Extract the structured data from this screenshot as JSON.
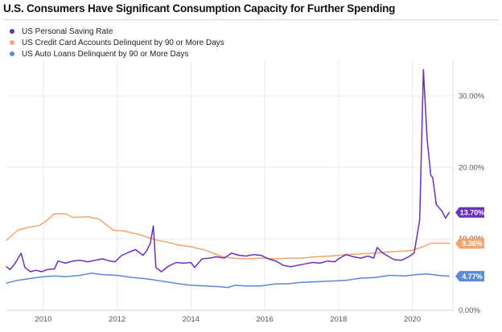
{
  "chart_data": {
    "type": "line",
    "title": "U.S. Consumers Have Significant Consumption Capacity for Further Spending",
    "xlabel": "",
    "ylabel": "",
    "xlim": [
      2009.0,
      2021.1
    ],
    "ylim": [
      0,
      35
    ],
    "x_ticks": [
      "2010",
      "2012",
      "2014",
      "2016",
      "2018",
      "2020"
    ],
    "y_ticks": [
      "0.00%",
      "10.00%",
      "20.00%",
      "30.00%"
    ],
    "grid": true,
    "legend": "top-left",
    "series": [
      {
        "name": "US Personal Saving Rate",
        "color": "#6a2fc0",
        "end_label": "13.70%",
        "points": [
          [
            2009.0,
            6.1
          ],
          [
            2009.1,
            5.7
          ],
          [
            2009.25,
            6.7
          ],
          [
            2009.4,
            8.0
          ],
          [
            2009.5,
            6.0
          ],
          [
            2009.65,
            5.4
          ],
          [
            2009.8,
            5.6
          ],
          [
            2009.95,
            5.4
          ],
          [
            2010.1,
            5.7
          ],
          [
            2010.3,
            5.8
          ],
          [
            2010.4,
            6.9
          ],
          [
            2010.6,
            6.6
          ],
          [
            2010.8,
            6.9
          ],
          [
            2011.0,
            7.0
          ],
          [
            2011.2,
            6.8
          ],
          [
            2011.4,
            7.0
          ],
          [
            2011.6,
            7.2
          ],
          [
            2011.8,
            6.9
          ],
          [
            2011.95,
            6.8
          ],
          [
            2012.1,
            7.6
          ],
          [
            2012.3,
            8.1
          ],
          [
            2012.5,
            8.5
          ],
          [
            2012.7,
            7.7
          ],
          [
            2012.8,
            8.3
          ],
          [
            2012.9,
            9.4
          ],
          [
            2012.98,
            11.8
          ],
          [
            2013.05,
            6.0
          ],
          [
            2013.2,
            5.4
          ],
          [
            2013.4,
            6.2
          ],
          [
            2013.6,
            6.7
          ],
          [
            2013.8,
            6.6
          ],
          [
            2014.0,
            6.7
          ],
          [
            2014.1,
            6.0
          ],
          [
            2014.3,
            7.2
          ],
          [
            2014.5,
            7.3
          ],
          [
            2014.7,
            7.5
          ],
          [
            2014.9,
            7.3
          ],
          [
            2015.1,
            8.0
          ],
          [
            2015.3,
            7.7
          ],
          [
            2015.5,
            7.6
          ],
          [
            2015.7,
            7.8
          ],
          [
            2015.9,
            7.7
          ],
          [
            2016.1,
            7.2
          ],
          [
            2016.3,
            6.9
          ],
          [
            2016.5,
            6.3
          ],
          [
            2016.7,
            6.1
          ],
          [
            2016.9,
            6.3
          ],
          [
            2017.1,
            6.5
          ],
          [
            2017.3,
            6.7
          ],
          [
            2017.5,
            6.6
          ],
          [
            2017.7,
            6.9
          ],
          [
            2017.9,
            6.8
          ],
          [
            2018.0,
            7.2
          ],
          [
            2018.2,
            7.8
          ],
          [
            2018.4,
            7.5
          ],
          [
            2018.6,
            7.3
          ],
          [
            2018.8,
            7.6
          ],
          [
            2018.95,
            7.3
          ],
          [
            2019.05,
            8.8
          ],
          [
            2019.15,
            8.2
          ],
          [
            2019.3,
            7.7
          ],
          [
            2019.5,
            7.1
          ],
          [
            2019.7,
            7.0
          ],
          [
            2019.9,
            7.5
          ],
          [
            2020.05,
            8.0
          ],
          [
            2020.2,
            12.7
          ],
          [
            2020.3,
            33.7
          ],
          [
            2020.4,
            24.0
          ],
          [
            2020.5,
            18.9
          ],
          [
            2020.55,
            18.6
          ],
          [
            2020.65,
            14.8
          ],
          [
            2020.8,
            13.9
          ],
          [
            2020.9,
            12.9
          ],
          [
            2021.0,
            13.7
          ]
        ]
      },
      {
        "name": "US Credit Card Accounts Delinquent by 90 or More Days",
        "color": "#f4a46e",
        "end_label": "9.36%",
        "points": [
          [
            2009.0,
            9.8
          ],
          [
            2009.3,
            11.2
          ],
          [
            2009.6,
            11.6
          ],
          [
            2009.9,
            11.9
          ],
          [
            2010.1,
            12.6
          ],
          [
            2010.3,
            13.5
          ],
          [
            2010.6,
            13.5
          ],
          [
            2010.8,
            13.0
          ],
          [
            2011.2,
            13.1
          ],
          [
            2011.5,
            12.8
          ],
          [
            2011.9,
            11.2
          ],
          [
            2012.2,
            11.1
          ],
          [
            2012.6,
            10.6
          ],
          [
            2013.0,
            9.9
          ],
          [
            2013.3,
            9.6
          ],
          [
            2013.7,
            9.1
          ],
          [
            2014.0,
            8.9
          ],
          [
            2014.4,
            8.4
          ],
          [
            2014.8,
            7.6
          ],
          [
            2015.1,
            7.3
          ],
          [
            2015.5,
            7.2
          ],
          [
            2015.9,
            7.3
          ],
          [
            2016.3,
            7.2
          ],
          [
            2016.6,
            7.3
          ],
          [
            2017.0,
            7.3
          ],
          [
            2017.4,
            7.5
          ],
          [
            2017.8,
            7.6
          ],
          [
            2018.2,
            7.8
          ],
          [
            2018.6,
            7.9
          ],
          [
            2019.0,
            8.0
          ],
          [
            2019.4,
            8.2
          ],
          [
            2019.8,
            8.3
          ],
          [
            2020.0,
            8.4
          ],
          [
            2020.3,
            8.9
          ],
          [
            2020.5,
            9.4
          ],
          [
            2020.8,
            9.4
          ],
          [
            2021.0,
            9.36
          ]
        ]
      },
      {
        "name": "US Auto Loans Delinquent by 90 or More Days",
        "color": "#5a8ad6",
        "end_label": "4.77%",
        "points": [
          [
            2009.0,
            3.8
          ],
          [
            2009.3,
            4.2
          ],
          [
            2009.7,
            4.5
          ],
          [
            2010.0,
            4.7
          ],
          [
            2010.3,
            4.8
          ],
          [
            2010.6,
            4.7
          ],
          [
            2011.0,
            4.9
          ],
          [
            2011.3,
            5.2
          ],
          [
            2011.6,
            5.0
          ],
          [
            2012.0,
            4.9
          ],
          [
            2012.4,
            4.6
          ],
          [
            2012.8,
            4.4
          ],
          [
            2013.2,
            4.1
          ],
          [
            2013.7,
            3.7
          ],
          [
            2014.0,
            3.5
          ],
          [
            2014.4,
            3.4
          ],
          [
            2014.8,
            3.3
          ],
          [
            2015.0,
            3.2
          ],
          [
            2015.2,
            3.5
          ],
          [
            2015.5,
            3.4
          ],
          [
            2015.9,
            3.4
          ],
          [
            2016.3,
            3.7
          ],
          [
            2016.6,
            3.7
          ],
          [
            2017.0,
            3.9
          ],
          [
            2017.4,
            4.0
          ],
          [
            2017.8,
            4.1
          ],
          [
            2018.2,
            4.2
          ],
          [
            2018.6,
            4.5
          ],
          [
            2019.0,
            4.6
          ],
          [
            2019.4,
            4.9
          ],
          [
            2019.8,
            4.8
          ],
          [
            2020.1,
            5.0
          ],
          [
            2020.4,
            5.1
          ],
          [
            2020.7,
            4.9
          ],
          [
            2021.0,
            4.77
          ]
        ]
      }
    ]
  }
}
